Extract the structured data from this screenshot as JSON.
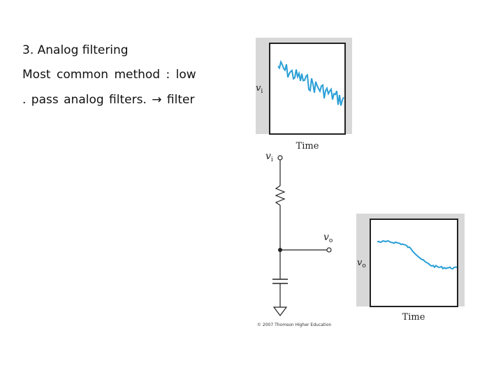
{
  "text": {
    "line1": "3. Analog filtering",
    "line2": "Most common method : low",
    "line3": ".  pass analog filters. → filter"
  },
  "diagram": {
    "input_plot": {
      "y_label": "v",
      "y_sub": "i",
      "x_label": "Time",
      "trace_color": "#2a9fd6"
    },
    "output_plot": {
      "y_label": "v",
      "y_sub": "o",
      "x_label": "Time",
      "trace_color": "#2a9fd6"
    },
    "circuit": {
      "input_node": {
        "label": "v",
        "sub": "i"
      },
      "output_node": {
        "label": "v",
        "sub": "o"
      }
    },
    "copyright": "© 2007 Thomson Higher Education"
  }
}
